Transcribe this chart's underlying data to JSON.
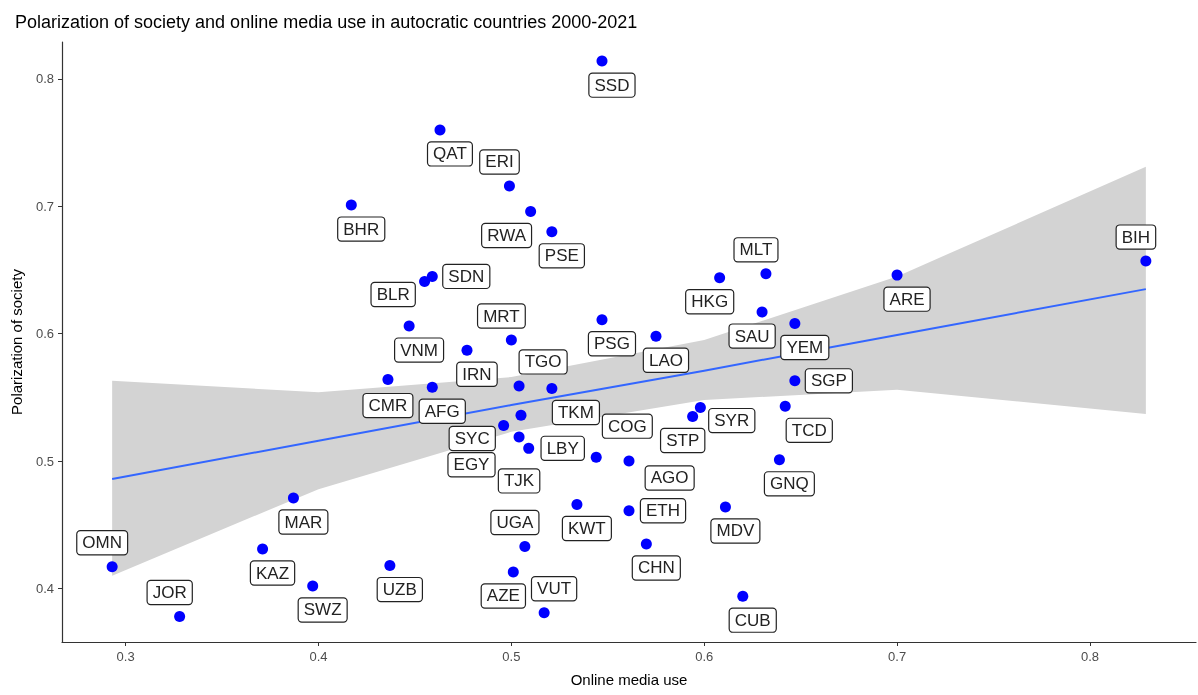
{
  "chart_data": {
    "type": "scatter",
    "title": "Polarization of society and online media use in autocratic countries 2000-2021",
    "xlabel": "Online media use",
    "ylabel": "Polarization of society",
    "xlim": [
      0.267,
      0.855
    ],
    "ylim": [
      0.358,
      0.829
    ],
    "xticks": [
      0.3,
      0.4,
      0.5,
      0.6,
      0.7,
      0.8
    ],
    "yticks": [
      0.4,
      0.5,
      0.6,
      0.7,
      0.8
    ],
    "grid": false,
    "marker": "circle",
    "series": [
      {
        "color": "#0000ff",
        "x": [
          0.547,
          0.463,
          0.499,
          0.51,
          0.521,
          0.417,
          0.455,
          0.459,
          0.608,
          0.632,
          0.7,
          0.829,
          0.63,
          0.647,
          0.447,
          0.5,
          0.547,
          0.477,
          0.575,
          0.436,
          0.459,
          0.504,
          0.521,
          0.647,
          0.598,
          0.642,
          0.594,
          0.496,
          0.505,
          0.504,
          0.509,
          0.544,
          0.561,
          0.534,
          0.561,
          0.57,
          0.639,
          0.611,
          0.62,
          0.507,
          0.501,
          0.517,
          0.437,
          0.397,
          0.328,
          0.371,
          0.387,
          0.293
        ],
        "values": [
          0.814,
          0.76,
          0.716,
          0.696,
          0.68,
          0.701,
          0.641,
          0.645,
          0.644,
          0.647,
          0.646,
          0.657,
          0.617,
          0.608,
          0.606,
          0.595,
          0.611,
          0.587,
          0.598,
          0.564,
          0.558,
          0.559,
          0.557,
          0.563,
          0.542,
          0.543,
          0.535,
          0.528,
          0.536,
          0.519,
          0.51,
          0.503,
          0.5,
          0.466,
          0.461,
          0.435,
          0.501,
          0.464,
          0.394,
          0.433,
          0.413,
          0.381,
          0.418,
          0.402,
          0.378,
          0.431,
          0.471,
          0.417
        ],
        "value_labels": [
          "SSD",
          "QAT",
          "ERI",
          "RWA",
          "PSE",
          "BHR",
          "BLR",
          "SDN",
          "HKG",
          "MLT",
          "ARE",
          "BIH",
          "SAU",
          "YEM",
          "VNM",
          "MRT",
          "PSG",
          "IRN",
          "LAO",
          "CMR",
          "AFG",
          "TGO",
          "TKM",
          "SGP",
          "SYR",
          "TCD",
          "STP",
          "SYC",
          "EGY",
          "TJK",
          "LBY",
          "COG",
          "AGO",
          "KWT",
          "ETH",
          "CHN",
          "GNQ",
          "MDV",
          "CUB",
          "UGA",
          "AZE",
          "VUT",
          "UZB",
          "SWZ",
          "JOR",
          "KAZ",
          "MAR",
          "OMN"
        ]
      },
      {
        "type": "line",
        "color": "#3366ff",
        "marker": "none",
        "x": [
          0.293,
          0.4,
          0.5,
          0.6,
          0.7,
          0.829
        ],
        "values": [
          0.486,
          0.516,
          0.544,
          0.571,
          0.599,
          0.635
        ],
        "lower": [
          0.41,
          0.478,
          0.523,
          0.548,
          0.556,
          0.537
        ],
        "upper": [
          0.563,
          0.554,
          0.566,
          0.595,
          0.645,
          0.731
        ]
      }
    ]
  }
}
